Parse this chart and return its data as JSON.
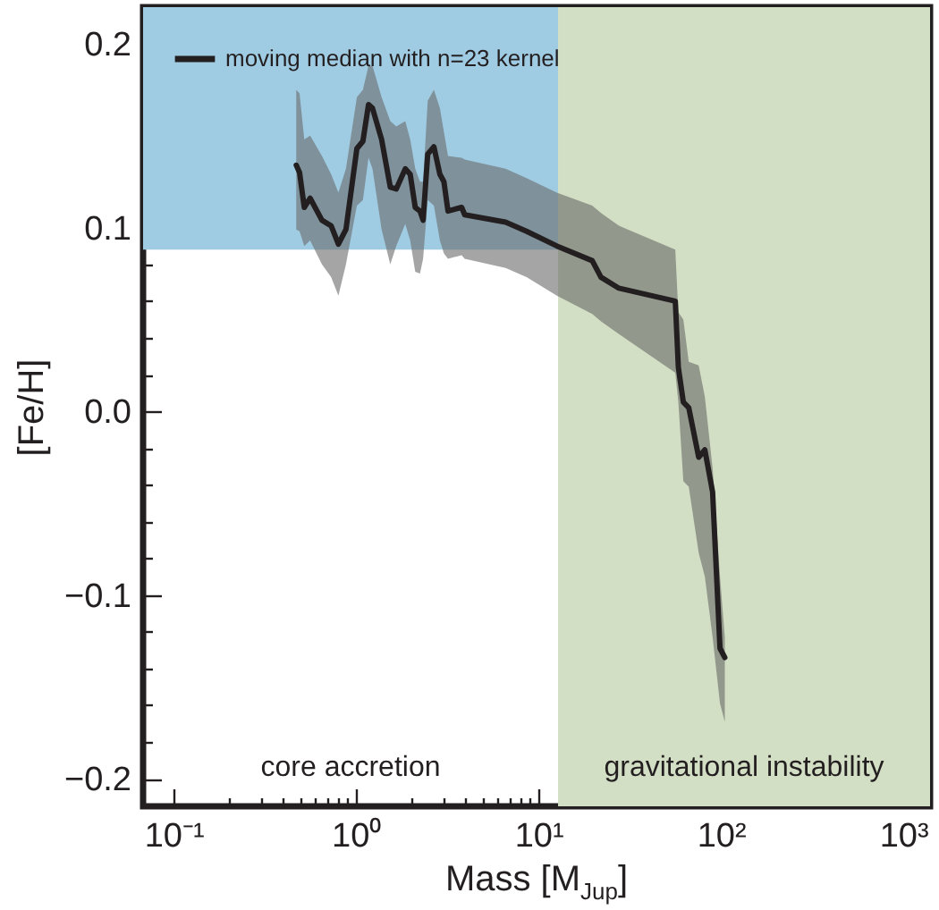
{
  "chart_data": {
    "type": "line",
    "xlabel": "Mass  [M$_{Jup}$]",
    "ylabel": "[Fe/H]",
    "log": "x",
    "xlim": [
      0.068,
      1400
    ],
    "ylim": [
      -0.215,
      0.22
    ],
    "xticks": [
      {
        "value": 0.1,
        "label": "10⁻¹"
      },
      {
        "value": 0.2,
        "label": null
      },
      {
        "value": 0.3,
        "label": null
      },
      {
        "value": 0.4,
        "label": null
      },
      {
        "value": 0.5,
        "label": null
      },
      {
        "value": 0.6,
        "label": null
      },
      {
        "value": 0.7,
        "label": null
      },
      {
        "value": 0.8,
        "label": null
      },
      {
        "value": 0.9,
        "label": null
      },
      {
        "value": 1,
        "label": "10⁰"
      },
      {
        "value": 2,
        "label": null
      },
      {
        "value": 3,
        "label": null
      },
      {
        "value": 4,
        "label": null
      },
      {
        "value": 5,
        "label": null
      },
      {
        "value": 6,
        "label": null
      },
      {
        "value": 7,
        "label": null
      },
      {
        "value": 8,
        "label": null
      },
      {
        "value": 9,
        "label": null
      },
      {
        "value": 10,
        "label": "10¹"
      },
      {
        "value": 20,
        "label": null
      },
      {
        "value": 30,
        "label": null
      },
      {
        "value": 40,
        "label": null
      },
      {
        "value": 50,
        "label": null
      },
      {
        "value": 60,
        "label": null
      },
      {
        "value": 70,
        "label": null
      },
      {
        "value": 80,
        "label": null
      },
      {
        "value": 90,
        "label": null
      },
      {
        "value": 100,
        "label": "10²"
      },
      {
        "value": 200,
        "label": null
      },
      {
        "value": 300,
        "label": null
      },
      {
        "value": 400,
        "label": null
      },
      {
        "value": 500,
        "label": null
      },
      {
        "value": 600,
        "label": null
      },
      {
        "value": 700,
        "label": null
      },
      {
        "value": 800,
        "label": null
      },
      {
        "value": 900,
        "label": null
      },
      {
        "value": 1000,
        "label": "10³"
      }
    ],
    "yticks": [
      {
        "value": -0.2,
        "label": "−0.2"
      },
      {
        "value": -0.18,
        "label": null
      },
      {
        "value": -0.16,
        "label": null
      },
      {
        "value": -0.14,
        "label": null
      },
      {
        "value": -0.12,
        "label": null
      },
      {
        "value": -0.1,
        "label": "−0.1"
      },
      {
        "value": -0.08,
        "label": null
      },
      {
        "value": -0.06,
        "label": null
      },
      {
        "value": -0.04,
        "label": null
      },
      {
        "value": -0.02,
        "label": null
      },
      {
        "value": 0,
        "label": "0.0"
      },
      {
        "value": 0.02,
        "label": null
      },
      {
        "value": 0.04,
        "label": null
      },
      {
        "value": 0.06,
        "label": null
      },
      {
        "value": 0.08,
        "label": null
      },
      {
        "value": 0.1,
        "label": "0.1"
      },
      {
        "value": 0.12,
        "label": null
      },
      {
        "value": 0.14,
        "label": null
      },
      {
        "value": 0.16,
        "label": null
      },
      {
        "value": 0.18,
        "label": null
      },
      {
        "value": 0.2,
        "label": "0.2"
      }
    ],
    "grid": false,
    "legend": "top left",
    "bands": [
      {
        "axis": "y",
        "from": 0.088,
        "to": 0.22,
        "color": "#a0cce3"
      },
      {
        "axis": "x",
        "from": 12.8,
        "to": 1400,
        "color": "#d3dfc4"
      }
    ],
    "annotations": [
      "core accretion",
      "gravitational instability"
    ],
    "x": [
      0.47,
      0.49,
      0.52,
      0.56,
      0.65,
      0.73,
      0.8,
      0.88,
      1.01,
      1.09,
      1.17,
      1.23,
      1.38,
      1.54,
      1.66,
      1.86,
      1.98,
      2.11,
      2.24,
      2.33,
      2.47,
      2.67,
      2.88,
      3.03,
      3.19,
      3.79,
      3.94,
      6.6,
      8.6,
      12.6,
      19.7,
      22,
      27.6,
      56.2,
      58.4,
      62.2,
      66.6,
      75.5,
      81.6,
      90,
      98.8,
      105
    ],
    "series": [
      {
        "name": "moving median with n=23 kernel",
        "color": "#231f20",
        "values": [
          0.134,
          0.13,
          0.111,
          0.116,
          0.104,
          0.101,
          0.091,
          0.099,
          0.143,
          0.147,
          0.167,
          0.165,
          0.148,
          0.122,
          0.121,
          0.132,
          0.129,
          0.111,
          0.109,
          0.104,
          0.14,
          0.144,
          0.129,
          0.125,
          0.109,
          0.111,
          0.107,
          0.103,
          0.098,
          0.09,
          0.082,
          0.073,
          0.067,
          0.06,
          0.024,
          0.005,
          0.002,
          -0.025,
          -0.021,
          -0.044,
          -0.129,
          -0.134
        ],
        "lower": [
          0.099,
          0.098,
          0.09,
          0.093,
          0.08,
          0.073,
          0.063,
          0.08,
          0.112,
          0.115,
          0.138,
          0.132,
          0.099,
          0.08,
          0.09,
          0.102,
          0.093,
          0.076,
          0.075,
          0.083,
          0.115,
          0.112,
          0.093,
          0.086,
          0.083,
          0.085,
          0.083,
          0.078,
          0.073,
          0.063,
          0.053,
          0.049,
          0.042,
          0.021,
          0.005,
          -0.038,
          -0.041,
          -0.077,
          -0.09,
          -0.123,
          -0.159,
          -0.169
        ],
        "upper": [
          0.175,
          0.173,
          0.148,
          0.15,
          0.139,
          0.129,
          0.119,
          0.132,
          0.171,
          0.175,
          0.188,
          0.188,
          0.171,
          0.158,
          0.155,
          0.158,
          0.148,
          0.132,
          0.125,
          0.125,
          0.169,
          0.175,
          0.165,
          0.152,
          0.139,
          0.138,
          0.137,
          0.132,
          0.127,
          0.119,
          0.112,
          0.108,
          0.101,
          0.088,
          0.054,
          0.05,
          0.027,
          0.025,
          0.008,
          -0.031,
          -0.09,
          -0.123
        ]
      }
    ]
  }
}
